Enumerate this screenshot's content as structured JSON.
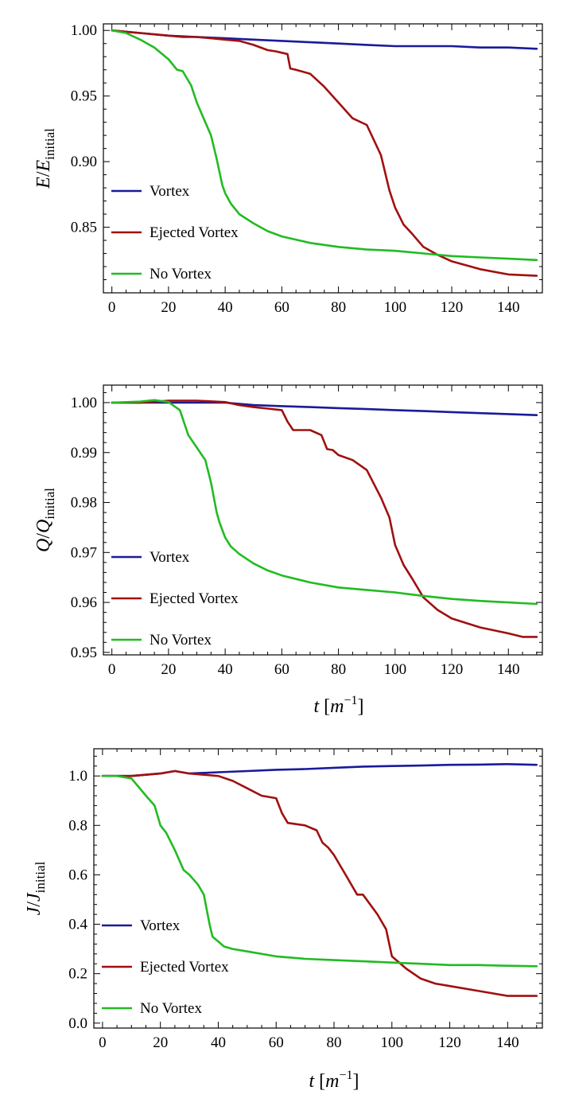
{
  "colors": {
    "vortex": "#1a1a9a",
    "ejected": "#a01010",
    "novortex": "#22bb22"
  },
  "chart_data": [
    {
      "type": "line",
      "ylabel_main": "E",
      "ylabel_denom": "E",
      "ylabel_sub": "initial",
      "xlabel": "",
      "xlim": [
        -3,
        152
      ],
      "ylim": [
        0.8,
        1.005
      ],
      "xticks": [
        0,
        20,
        40,
        60,
        80,
        100,
        120,
        140
      ],
      "yticks": [
        0.85,
        0.9,
        0.95,
        1.0
      ],
      "ytick_labels": [
        "0.85",
        "0.90",
        "0.95",
        "1.00"
      ],
      "legend": [
        "Vortex",
        "Ejected Vortex",
        "No Vortex"
      ],
      "series": [
        {
          "name": "Vortex",
          "color_key": "vortex",
          "x": [
            0,
            5,
            10,
            20,
            30,
            40,
            50,
            60,
            70,
            80,
            90,
            100,
            110,
            120,
            130,
            140,
            150
          ],
          "y": [
            1.0,
            0.999,
            0.998,
            0.996,
            0.995,
            0.994,
            0.993,
            0.992,
            0.991,
            0.99,
            0.989,
            0.988,
            0.988,
            0.988,
            0.987,
            0.987,
            0.986
          ]
        },
        {
          "name": "Ejected Vortex",
          "color_key": "ejected",
          "x": [
            0,
            5,
            10,
            15,
            20,
            25,
            30,
            35,
            40,
            45,
            50,
            55,
            58,
            60,
            62,
            63,
            65,
            70,
            72,
            75,
            80,
            85,
            90,
            95,
            98,
            100,
            103,
            106,
            110,
            115,
            120,
            130,
            140,
            150
          ],
          "y": [
            1.0,
            0.999,
            0.998,
            0.997,
            0.996,
            0.995,
            0.995,
            0.994,
            0.993,
            0.992,
            0.989,
            0.985,
            0.984,
            0.983,
            0.982,
            0.971,
            0.97,
            0.967,
            0.963,
            0.957,
            0.945,
            0.933,
            0.928,
            0.905,
            0.878,
            0.865,
            0.852,
            0.845,
            0.835,
            0.829,
            0.824,
            0.818,
            0.814,
            0.813
          ]
        },
        {
          "name": "No Vortex",
          "color_key": "novortex",
          "x": [
            0,
            5,
            10,
            15,
            20,
            23,
            25,
            28,
            30,
            33,
            35,
            37,
            39,
            40,
            42,
            45,
            50,
            55,
            60,
            70,
            80,
            90,
            100,
            110,
            120,
            130,
            140,
            150
          ],
          "y": [
            1.0,
            0.998,
            0.993,
            0.987,
            0.978,
            0.97,
            0.969,
            0.958,
            0.945,
            0.93,
            0.92,
            0.902,
            0.882,
            0.876,
            0.868,
            0.86,
            0.853,
            0.847,
            0.843,
            0.838,
            0.835,
            0.833,
            0.832,
            0.83,
            0.828,
            0.827,
            0.826,
            0.825
          ]
        }
      ]
    },
    {
      "type": "line",
      "ylabel_main": "Q",
      "ylabel_denom": "Q",
      "ylabel_sub": "initial",
      "xlabel": "t",
      "xlabel_unit": "m",
      "xlabel_exp": "−1",
      "xlim": [
        -3,
        152
      ],
      "ylim": [
        0.9495,
        1.0035
      ],
      "xticks": [
        0,
        20,
        40,
        60,
        80,
        100,
        120,
        140
      ],
      "yticks": [
        0.95,
        0.96,
        0.97,
        0.98,
        0.99,
        1.0
      ],
      "ytick_labels": [
        "0.95",
        "0.96",
        "0.97",
        "0.98",
        "0.99",
        "1.00"
      ],
      "legend": [
        "Vortex",
        "Ejected Vortex",
        "No Vortex"
      ],
      "series": [
        {
          "name": "Vortex",
          "color_key": "vortex",
          "x": [
            0,
            10,
            20,
            30,
            40,
            50,
            60,
            70,
            80,
            90,
            100,
            110,
            120,
            130,
            140,
            150
          ],
          "y": [
            1.0,
            1.0,
            1.0,
            1.0,
            1.0,
            0.9995,
            0.9993,
            0.9991,
            0.9989,
            0.9987,
            0.9985,
            0.9983,
            0.9981,
            0.9979,
            0.9977,
            0.9975
          ]
        },
        {
          "name": "Ejected Vortex",
          "color_key": "ejected",
          "x": [
            0,
            10,
            20,
            30,
            40,
            45,
            50,
            55,
            60,
            62,
            64,
            66,
            70,
            74,
            76,
            78,
            80,
            85,
            90,
            95,
            98,
            100,
            103,
            106,
            110,
            115,
            120,
            130,
            140,
            145,
            150
          ],
          "y": [
            1.0,
            1.0,
            1.0004,
            1.0004,
            1.0001,
            0.9995,
            0.9991,
            0.9988,
            0.9985,
            0.9962,
            0.9945,
            0.9945,
            0.9945,
            0.9935,
            0.9907,
            0.9905,
            0.9895,
            0.9885,
            0.9865,
            0.981,
            0.977,
            0.9715,
            0.9675,
            0.9648,
            0.961,
            0.9585,
            0.9568,
            0.955,
            0.9538,
            0.9531,
            0.9531
          ]
        },
        {
          "name": "No Vortex",
          "color_key": "novortex",
          "x": [
            0,
            10,
            15,
            20,
            24,
            27,
            30,
            33,
            35,
            37,
            38,
            40,
            42,
            45,
            50,
            55,
            60,
            70,
            80,
            90,
            100,
            110,
            120,
            130,
            140,
            150
          ],
          "y": [
            1.0,
            1.0002,
            1.0005,
            1.0001,
            0.9985,
            0.9935,
            0.991,
            0.9885,
            0.984,
            0.978,
            0.976,
            0.973,
            0.9712,
            0.9697,
            0.9678,
            0.9664,
            0.9654,
            0.964,
            0.963,
            0.9625,
            0.962,
            0.9613,
            0.9607,
            0.9603,
            0.96,
            0.9597
          ]
        }
      ]
    },
    {
      "type": "line",
      "ylabel_main": "J",
      "ylabel_denom": "J",
      "ylabel_sub": "initial",
      "xlabel": "t",
      "xlabel_unit": "m",
      "xlabel_exp": "−1",
      "xlim": [
        -3,
        152
      ],
      "ylim": [
        -0.02,
        1.11
      ],
      "xticks": [
        0,
        20,
        40,
        60,
        80,
        100,
        120,
        140
      ],
      "yticks": [
        0.0,
        0.2,
        0.4,
        0.6,
        0.8,
        1.0
      ],
      "ytick_labels": [
        "0.0",
        "0.2",
        "0.4",
        "0.6",
        "0.8",
        "1.0"
      ],
      "legend": [
        "Vortex",
        "Ejected Vortex",
        "No Vortex"
      ],
      "series": [
        {
          "name": "Vortex",
          "color_key": "vortex",
          "x": [
            0,
            10,
            20,
            25,
            30,
            40,
            50,
            60,
            70,
            80,
            90,
            100,
            110,
            120,
            130,
            140,
            150
          ],
          "y": [
            1.0,
            1.0,
            1.01,
            1.02,
            1.01,
            1.015,
            1.02,
            1.025,
            1.028,
            1.033,
            1.038,
            1.04,
            1.042,
            1.045,
            1.046,
            1.048,
            1.045
          ]
        },
        {
          "name": "Ejected Vortex",
          "color_key": "ejected",
          "x": [
            0,
            10,
            20,
            25,
            30,
            40,
            45,
            50,
            55,
            60,
            62,
            64,
            70,
            74,
            76,
            78,
            80,
            84,
            88,
            90,
            95,
            98,
            100,
            102,
            105,
            110,
            115,
            120,
            130,
            140,
            150
          ],
          "y": [
            1.0,
            1.0,
            1.01,
            1.02,
            1.01,
            1.0,
            0.98,
            0.95,
            0.92,
            0.91,
            0.85,
            0.81,
            0.8,
            0.78,
            0.73,
            0.71,
            0.68,
            0.6,
            0.52,
            0.52,
            0.44,
            0.38,
            0.27,
            0.25,
            0.22,
            0.18,
            0.16,
            0.15,
            0.13,
            0.11,
            0.11
          ]
        },
        {
          "name": "No Vortex",
          "color_key": "novortex",
          "x": [
            0,
            5,
            10,
            15,
            18,
            20,
            22,
            25,
            28,
            30,
            33,
            35,
            37,
            38,
            40,
            42,
            45,
            50,
            60,
            70,
            80,
            90,
            100,
            110,
            120,
            130,
            140,
            150
          ],
          "y": [
            1.0,
            1.0,
            0.99,
            0.92,
            0.88,
            0.8,
            0.77,
            0.7,
            0.62,
            0.6,
            0.56,
            0.52,
            0.4,
            0.35,
            0.33,
            0.31,
            0.3,
            0.29,
            0.27,
            0.26,
            0.255,
            0.25,
            0.245,
            0.24,
            0.235,
            0.235,
            0.232,
            0.23
          ]
        }
      ]
    }
  ]
}
